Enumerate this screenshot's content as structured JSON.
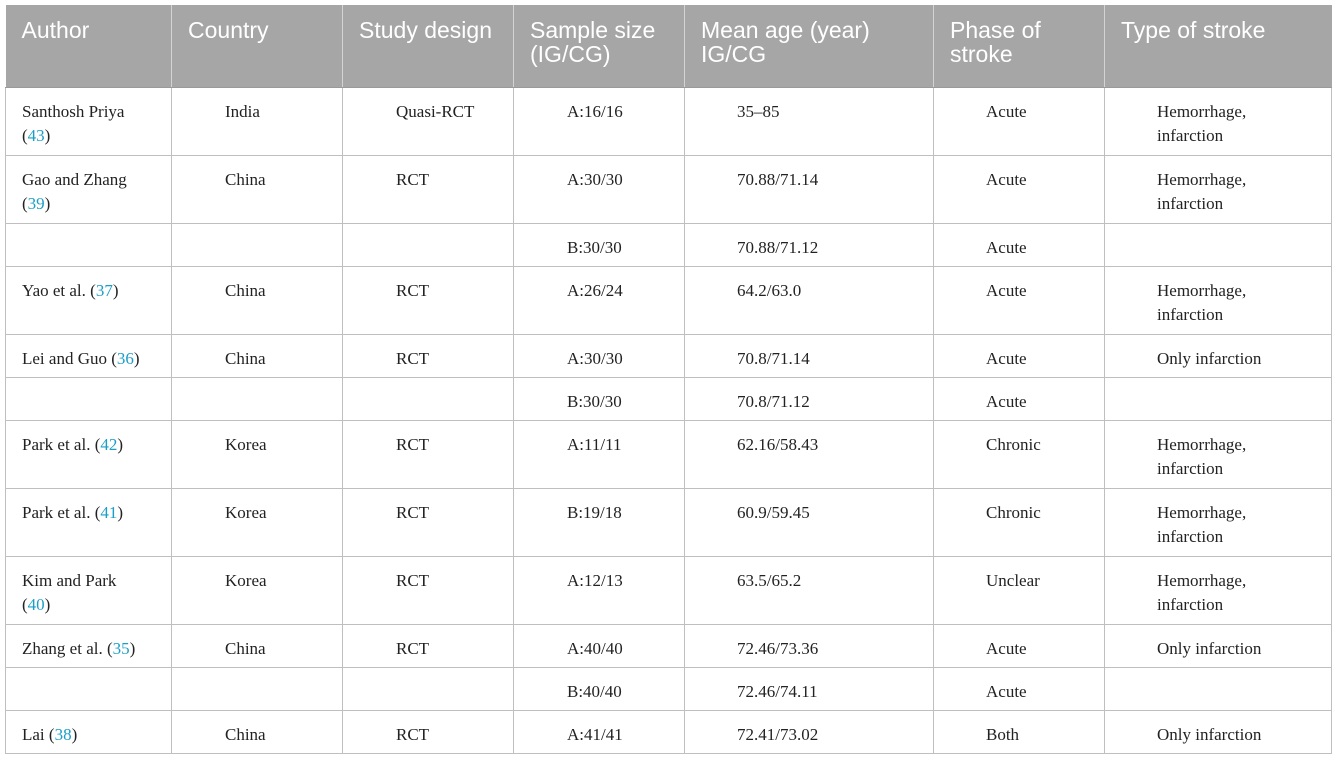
{
  "headers": [
    "Author",
    "Country",
    "Study design",
    "Sample size (IG/CG)",
    "Mean age (year) IG/CG",
    "Phase of stroke",
    "Type of stroke"
  ],
  "rows": [
    {
      "author_pre": "Santhosh Priya\n(",
      "ref": "43",
      "author_post": ")",
      "country": "India",
      "design": "Quasi-RCT",
      "sample": "A:16/16",
      "age": "35–85",
      "phase": "Acute",
      "type": "Hemorrhage,\ninfarction",
      "tall": true
    },
    {
      "author_pre": "Gao and Zhang\n(",
      "ref": "39",
      "author_post": ")",
      "country": "China",
      "design": "RCT",
      "sample": "A:30/30",
      "age": "70.88/71.14",
      "phase": "Acute",
      "type": "Hemorrhage,\ninfarction",
      "tall": true
    },
    {
      "author_pre": "",
      "ref": "",
      "author_post": "",
      "country": "",
      "design": "",
      "sample": "B:30/30",
      "age": "70.88/71.12",
      "phase": "Acute",
      "type": "",
      "tall": false
    },
    {
      "author_pre": "Yao et al. (",
      "ref": "37",
      "author_post": ")",
      "country": "China",
      "design": "RCT",
      "sample": "A:26/24",
      "age": "64.2/63.0",
      "phase": "Acute",
      "type": "Hemorrhage,\ninfarction",
      "tall": true
    },
    {
      "author_pre": "Lei and Guo (",
      "ref": "36",
      "author_post": ")",
      "country": "China",
      "design": "RCT",
      "sample": "A:30/30",
      "age": "70.8/71.14",
      "phase": "Acute",
      "type": "Only infarction",
      "tall": false
    },
    {
      "author_pre": "",
      "ref": "",
      "author_post": "",
      "country": "",
      "design": "",
      "sample": "B:30/30",
      "age": "70.8/71.12",
      "phase": "Acute",
      "type": "",
      "tall": false
    },
    {
      "author_pre": "Park et al. (",
      "ref": "42",
      "author_post": ")",
      "country": "Korea",
      "design": "RCT",
      "sample": "A:11/11",
      "age": "62.16/58.43",
      "phase": "Chronic",
      "type": "Hemorrhage,\ninfarction",
      "tall": true
    },
    {
      "author_pre": "Park et al. (",
      "ref": "41",
      "author_post": ")",
      "country": "Korea",
      "design": "RCT",
      "sample": "B:19/18",
      "age": "60.9/59.45",
      "phase": "Chronic",
      "type": "Hemorrhage,\ninfarction",
      "tall": true
    },
    {
      "author_pre": "Kim and Park\n(",
      "ref": "40",
      "author_post": ")",
      "country": "Korea",
      "design": "RCT",
      "sample": "A:12/13",
      "age": "63.5/65.2",
      "phase": "Unclear",
      "type": "Hemorrhage,\ninfarction",
      "tall": true
    },
    {
      "author_pre": "Zhang et al. (",
      "ref": "35",
      "author_post": ")",
      "country": "China",
      "design": "RCT",
      "sample": "A:40/40",
      "age": "72.46/73.36",
      "phase": "Acute",
      "type": "Only infarction",
      "tall": false
    },
    {
      "author_pre": "",
      "ref": "",
      "author_post": "",
      "country": "",
      "design": "",
      "sample": "B:40/40",
      "age": "72.46/74.11",
      "phase": "Acute",
      "type": "",
      "tall": false
    },
    {
      "author_pre": "Lai (",
      "ref": "38",
      "author_post": ")",
      "country": "China",
      "design": "RCT",
      "sample": "A:41/41",
      "age": "72.41/73.02",
      "phase": "Both",
      "type": "Only infarction",
      "tall": false
    }
  ],
  "colors": {
    "header_bg": "#a6a6a6",
    "header_text": "#ffffff",
    "ref_link": "#1a9ec7",
    "border": "#bfbfbf"
  }
}
